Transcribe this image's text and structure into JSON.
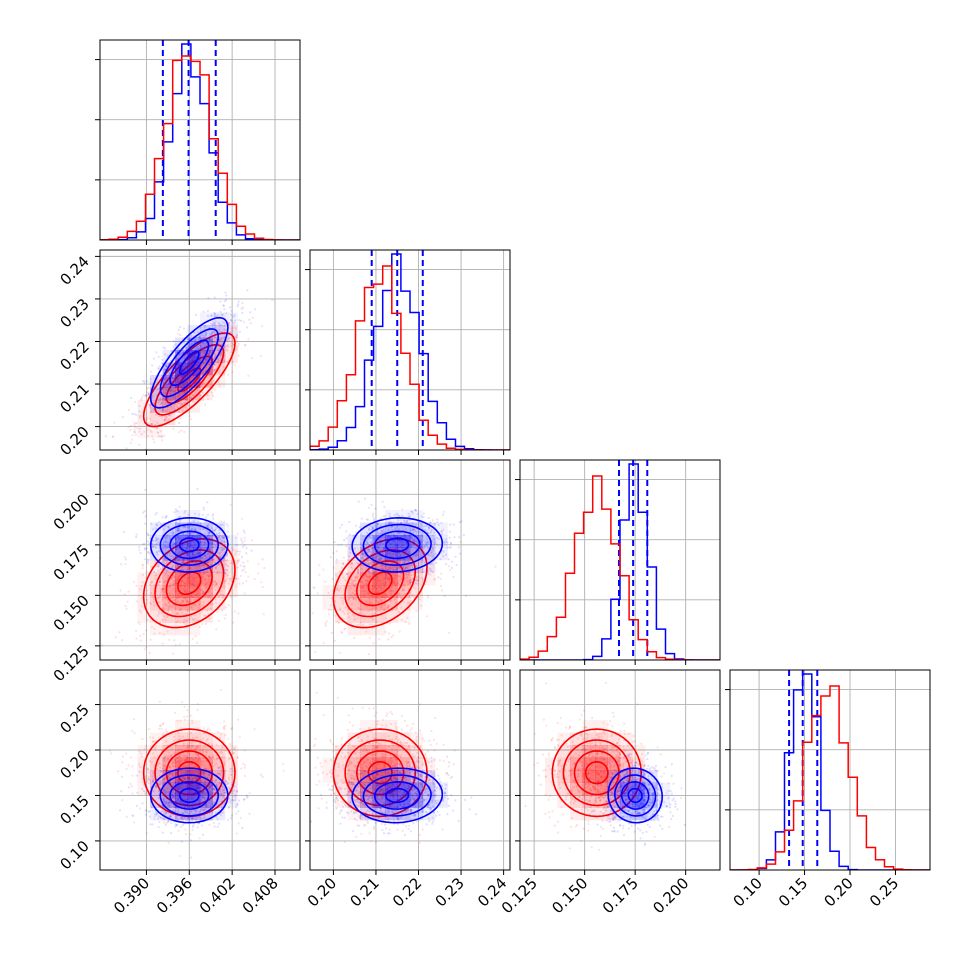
{
  "chart_data": {
    "type": "corner",
    "grid": true,
    "colors": {
      "series_a": "#0000ff",
      "series_b": "#ff0000"
    },
    "parameters": [
      {
        "range": [
          0.3835,
          0.4115
        ],
        "ticks": [
          0.39,
          0.396,
          0.402,
          0.408
        ],
        "tick_labels": [
          "0.390",
          "0.396",
          "0.402",
          "0.408"
        ]
      },
      {
        "range": [
          0.1945,
          0.2415
        ],
        "ticks": [
          0.2,
          0.21,
          0.22,
          0.23,
          0.24
        ],
        "tick_labels": [
          "0.20",
          "0.21",
          "0.22",
          "0.23",
          "0.24"
        ]
      },
      {
        "range": [
          0.118,
          0.217
        ],
        "ticks": [
          0.125,
          0.15,
          0.175,
          0.2
        ],
        "tick_labels": [
          "0.125",
          "0.150",
          "0.175",
          "0.200"
        ]
      },
      {
        "range": [
          0.068,
          0.288
        ],
        "ticks": [
          0.1,
          0.15,
          0.2,
          0.25
        ],
        "tick_labels": [
          "0.10",
          "0.15",
          "0.20",
          "0.25"
        ]
      }
    ],
    "series": [
      {
        "color": "#0000ff",
        "means": [
          0.396,
          0.215,
          0.175,
          0.15
        ],
        "sigmas": [
          0.0027,
          0.0053,
          0.0067,
          0.015
        ],
        "correlations": [
          [
            0,
            1,
            0.78
          ],
          [
            0,
            2,
            0.02
          ],
          [
            0,
            3,
            0.0
          ],
          [
            1,
            2,
            0.05
          ],
          [
            1,
            3,
            0.05
          ],
          [
            2,
            3,
            -0.05
          ]
        ],
        "quantiles": [
          [
            0.3923,
            0.3959,
            0.3997
          ],
          [
            0.209,
            0.215,
            0.221
          ],
          [
            0.167,
            0.174,
            0.181
          ],
          [
            0.133,
            0.148,
            0.164
          ]
        ],
        "hist_peak": 0.98
      },
      {
        "color": "#ff0000",
        "means": [
          0.396,
          0.211,
          0.156,
          0.175
        ],
        "sigmas": [
          0.0032,
          0.0055,
          0.011,
          0.024
        ],
        "correlations": [
          [
            0,
            1,
            0.78
          ],
          [
            0,
            2,
            0.3
          ],
          [
            0,
            3,
            0.0
          ],
          [
            1,
            2,
            0.35
          ],
          [
            1,
            3,
            0.0
          ],
          [
            2,
            3,
            0.0
          ]
        ],
        "hist_peak": 0.92
      }
    ]
  }
}
